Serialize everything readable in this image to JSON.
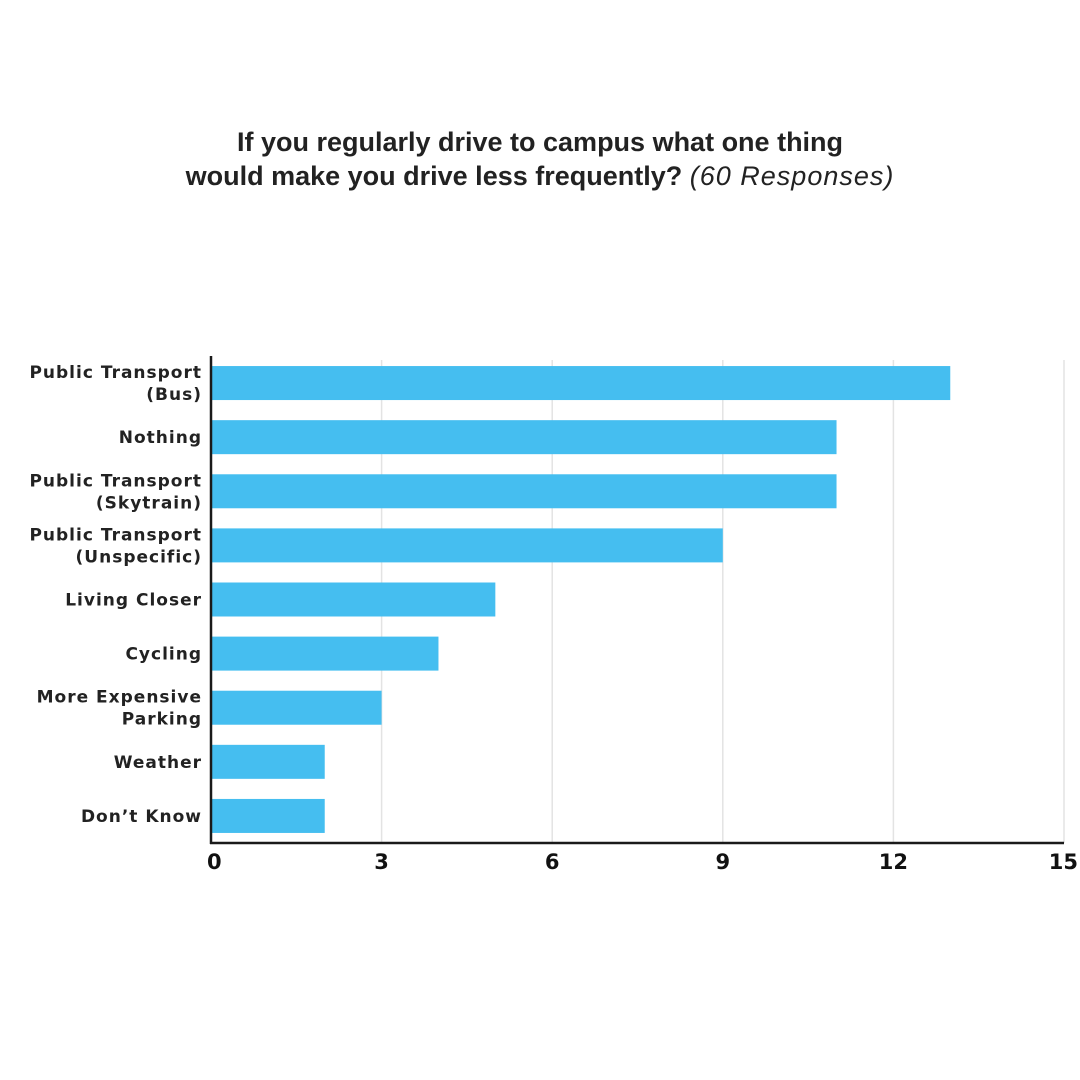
{
  "chart_data": {
    "type": "bar",
    "orientation": "horizontal",
    "title_line1": "If you regularly drive to campus what one thing",
    "title_line2": "would make you drive less frequently?",
    "subtitle": "(60 Responses)",
    "categories": [
      [
        "Public Transport",
        "(Bus)"
      ],
      [
        "Nothing"
      ],
      [
        "Public Transport",
        "(Skytrain)"
      ],
      [
        "Public Transport",
        "(Unspecific)"
      ],
      [
        "Living Closer"
      ],
      [
        "Cycling"
      ],
      [
        "More Expensive",
        "Parking"
      ],
      [
        "Weather"
      ],
      [
        "Don’t Know"
      ]
    ],
    "values": [
      13,
      11,
      11,
      9,
      5,
      4,
      3,
      2,
      2
    ],
    "xlim": [
      0,
      15
    ],
    "xticks": [
      "0",
      "3",
      "6",
      "9",
      "12",
      "15"
    ],
    "grid": true,
    "bar_color": "#45BEF0",
    "grid_color": "#E3E3E3",
    "axis_color": "#1A1A1A"
  }
}
